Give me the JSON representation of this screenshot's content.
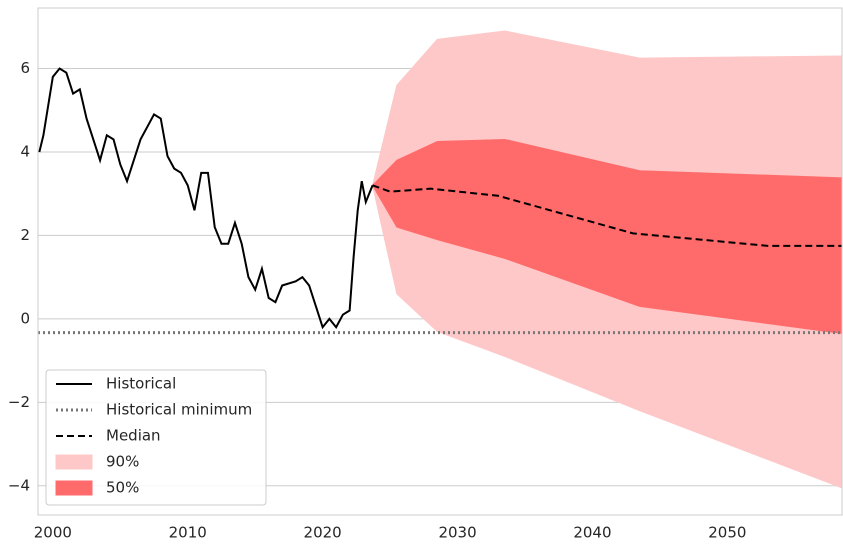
{
  "chart_data": {
    "type": "fan",
    "xlim": [
      1998.9,
      2058.5
    ],
    "ylim": [
      -4.7,
      7.45
    ],
    "xticks": [
      2000,
      2010,
      2020,
      2030,
      2040,
      2050
    ],
    "yticks": [
      {
        "value": -4,
        "label": "−4"
      },
      {
        "value": -2,
        "label": "−2"
      },
      0,
      2,
      4,
      6
    ],
    "grid": true,
    "legend": "lower left",
    "bands": [
      {
        "name": "90%",
        "color": "#ffc8c8",
        "x": [
          2023.7,
          2025.5,
          2028.5,
          2033.5,
          2043.5,
          2058.5
        ],
        "lower": [
          3.2,
          0.6,
          -0.3,
          -0.9,
          -2.2,
          -4.05
        ],
        "upper": [
          3.2,
          5.6,
          6.7,
          6.9,
          6.25,
          6.3
        ]
      },
      {
        "name": "50%",
        "color": "#ff6b6b",
        "x": [
          2023.7,
          2025.5,
          2028.5,
          2033.5,
          2043.5,
          2058.5
        ],
        "lower": [
          3.2,
          2.2,
          1.9,
          1.45,
          0.3,
          -0.35
        ],
        "upper": [
          3.2,
          3.8,
          4.25,
          4.3,
          3.55,
          3.38
        ]
      }
    ],
    "series": [
      {
        "name": "Historical",
        "color": "#000000",
        "style": "solid",
        "x": [
          1999.0,
          1999.3,
          1999.7,
          2000.0,
          2000.5,
          2001.0,
          2001.5,
          2002.0,
          2002.5,
          2003.0,
          2003.5,
          2004.0,
          2004.5,
          2005.0,
          2005.5,
          2006.0,
          2006.5,
          2007.0,
          2007.5,
          2008.0,
          2008.5,
          2009.0,
          2009.5,
          2010.0,
          2010.5,
          2011.0,
          2011.5,
          2012.0,
          2012.5,
          2013.0,
          2013.5,
          2014.0,
          2014.5,
          2015.0,
          2015.5,
          2016.0,
          2016.5,
          2017.0,
          2018.0,
          2018.5,
          2019.0,
          2019.5,
          2020.0,
          2020.5,
          2021.0,
          2021.5,
          2022.0,
          2022.3,
          2022.6,
          2022.9,
          2023.2,
          2023.7
        ],
        "values": [
          4.0,
          4.4,
          5.2,
          5.8,
          6.0,
          5.9,
          5.4,
          5.5,
          4.8,
          4.3,
          3.8,
          4.4,
          4.3,
          3.7,
          3.3,
          3.8,
          4.3,
          4.6,
          4.9,
          4.8,
          3.9,
          3.6,
          3.5,
          3.2,
          2.6,
          3.5,
          3.5,
          2.2,
          1.8,
          1.8,
          2.3,
          1.8,
          1.0,
          0.7,
          1.2,
          0.5,
          0.4,
          0.8,
          0.9,
          1.0,
          0.8,
          0.3,
          -0.2,
          0.0,
          -0.2,
          0.1,
          0.2,
          1.5,
          2.6,
          3.3,
          2.8,
          3.2
        ]
      },
      {
        "name": "Historical minimum",
        "color": "#777777",
        "style": "dotted",
        "x": [
          1998.9,
          2058.5
        ],
        "values": [
          -0.33,
          -0.33
        ]
      },
      {
        "name": "Median",
        "color": "#000000",
        "style": "dashed",
        "x": [
          2023.7,
          2025,
          2028,
          2033,
          2038,
          2043,
          2048,
          2053,
          2058.5
        ],
        "values": [
          3.2,
          3.05,
          3.12,
          2.95,
          2.5,
          2.05,
          1.9,
          1.75,
          1.75
        ]
      }
    ]
  }
}
